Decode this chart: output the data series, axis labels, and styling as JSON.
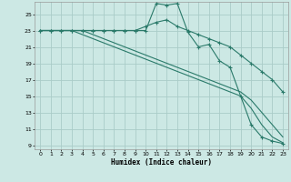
{
  "xlabel": "Humidex (Indice chaleur)",
  "bg_color": "#cce8e4",
  "grid_color": "#aaccc8",
  "line_color": "#2a7a6a",
  "xlim": [
    -0.5,
    23.5
  ],
  "ylim": [
    8.5,
    26.5
  ],
  "yticks": [
    9,
    11,
    13,
    15,
    17,
    19,
    21,
    23,
    25
  ],
  "xticks": [
    0,
    1,
    2,
    3,
    4,
    5,
    6,
    7,
    8,
    9,
    10,
    11,
    12,
    13,
    14,
    15,
    16,
    17,
    18,
    19,
    20,
    21,
    22,
    23
  ],
  "lines": [
    {
      "x": [
        0,
        1,
        2,
        3,
        4,
        5,
        6,
        7,
        8,
        9,
        10,
        11,
        12,
        13,
        14,
        15,
        16,
        17,
        18,
        19,
        20,
        21,
        22,
        23
      ],
      "y": [
        23,
        23,
        23,
        23,
        23,
        23,
        23,
        23,
        23,
        23,
        23,
        26.3,
        26.1,
        26.3,
        22.8,
        21,
        21.3,
        19.3,
        18.5,
        15,
        11.5,
        10,
        9.5,
        9.2
      ],
      "marker": true
    },
    {
      "x": [
        0,
        1,
        2,
        3,
        4,
        5,
        6,
        7,
        8,
        9,
        10,
        11,
        12,
        13,
        14,
        15,
        16,
        17,
        18,
        19,
        20,
        21,
        22,
        23
      ],
      "y": [
        23,
        23,
        23,
        23,
        23,
        23,
        23,
        23,
        23,
        23,
        23.5,
        24,
        24.3,
        23.5,
        23,
        22.5,
        22,
        21.5,
        21,
        20,
        19,
        18,
        17,
        15.5
      ],
      "marker": true
    },
    {
      "x": [
        0,
        1,
        2,
        3,
        4,
        5,
        6,
        7,
        8,
        9,
        10,
        11,
        12,
        13,
        14,
        15,
        16,
        17,
        18,
        19,
        20,
        21,
        22,
        23
      ],
      "y": [
        23,
        23,
        23,
        23,
        23,
        22.5,
        22,
        21.5,
        21,
        20.5,
        20,
        19.5,
        19,
        18.5,
        18,
        17.5,
        17,
        16.5,
        16,
        15.5,
        14.5,
        13,
        11.5,
        10.0
      ],
      "marker": false
    },
    {
      "x": [
        0,
        1,
        2,
        3,
        4,
        5,
        6,
        7,
        8,
        9,
        10,
        11,
        12,
        13,
        14,
        15,
        16,
        17,
        18,
        19,
        20,
        21,
        22,
        23
      ],
      "y": [
        23,
        23,
        23,
        23,
        22.5,
        22,
        21.5,
        21,
        20.5,
        20,
        19.5,
        19,
        18.5,
        18,
        17.5,
        17,
        16.5,
        16,
        15.5,
        15,
        13.5,
        11.5,
        10.0,
        9.3
      ],
      "marker": false
    }
  ]
}
